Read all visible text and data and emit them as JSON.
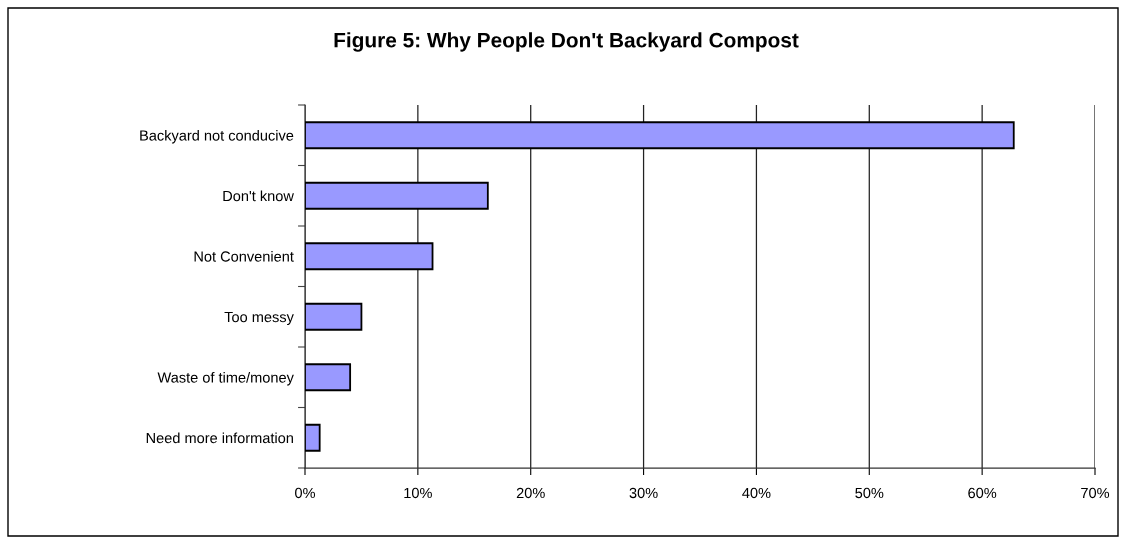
{
  "chart_data": {
    "type": "bar",
    "orientation": "horizontal",
    "title": "Figure 5: Why People Don't Backyard Compost",
    "categories": [
      "Backyard not conducive",
      "Don't know",
      "Not Convenient",
      "Too messy",
      "Waste of time/money",
      "Need more information"
    ],
    "values": [
      62.8,
      16.2,
      11.3,
      5.0,
      4.0,
      1.3
    ],
    "color": "#9999ff",
    "xlim": [
      0,
      70
    ],
    "xticks": [
      {
        "value": 0,
        "label": "0%"
      },
      {
        "value": 10,
        "label": "10%"
      },
      {
        "value": 20,
        "label": "20%"
      },
      {
        "value": 30,
        "label": "30%"
      },
      {
        "value": 40,
        "label": "40%"
      },
      {
        "value": 50,
        "label": "50%"
      },
      {
        "value": 60,
        "label": "60%"
      },
      {
        "value": 70,
        "label": "70%"
      }
    ],
    "grid": "x",
    "legend": false
  }
}
